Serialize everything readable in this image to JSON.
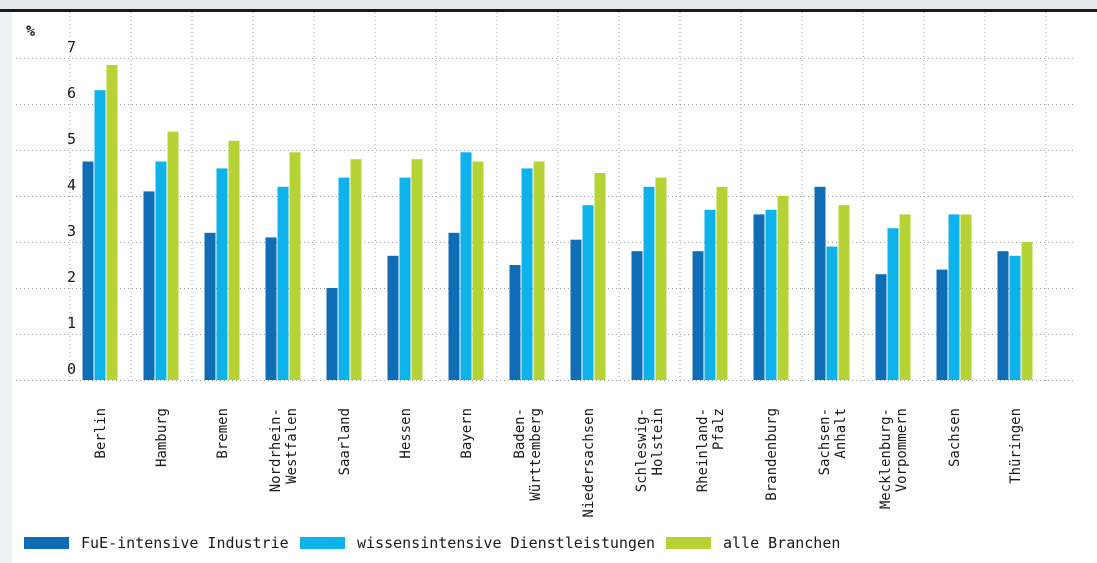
{
  "chart_data": {
    "type": "bar",
    "ylabel": "%",
    "xlabel": "",
    "ylim": [
      0,
      7
    ],
    "yticks": [
      0,
      1,
      2,
      3,
      4,
      5,
      6,
      7
    ],
    "grid": true,
    "legend_position": "bottom",
    "categories": [
      [
        "Berlin"
      ],
      [
        "Hamburg"
      ],
      [
        "Bremen"
      ],
      [
        "Nordrhein-",
        "Westfalen"
      ],
      [
        "Saarland"
      ],
      [
        "Hessen"
      ],
      [
        "Bayern"
      ],
      [
        "Baden-",
        "Württemberg"
      ],
      [
        "Niedersachsen"
      ],
      [
        "Schleswig-",
        "Holstein"
      ],
      [
        "Rheinland-",
        "Pfalz"
      ],
      [
        "Brandenburg"
      ],
      [
        "Sachsen-",
        "Anhalt"
      ],
      [
        "Mecklenburg-",
        "Vorpommern"
      ],
      [
        "Sachsen"
      ],
      [
        "Thüringen"
      ]
    ],
    "series": [
      {
        "name": "FuE-intensive Industrie",
        "color": "#0f6db5",
        "values": [
          4.75,
          4.1,
          3.2,
          3.1,
          2.0,
          2.7,
          3.2,
          2.5,
          3.05,
          2.8,
          2.8,
          3.6,
          4.2,
          2.3,
          2.4,
          2.8
        ]
      },
      {
        "name": "wissensintensive Dienstleistungen",
        "color": "#0eb2ea",
        "values": [
          6.3,
          4.75,
          4.6,
          4.2,
          4.4,
          4.4,
          4.95,
          4.6,
          3.8,
          4.2,
          3.7,
          3.7,
          2.9,
          3.3,
          3.6,
          2.7
        ]
      },
      {
        "name": "alle Branchen",
        "color": "#b5d334",
        "values": [
          6.85,
          5.4,
          5.2,
          4.95,
          4.8,
          4.8,
          4.75,
          4.75,
          4.5,
          4.4,
          4.2,
          4.0,
          3.8,
          3.6,
          3.6,
          3.0
        ]
      }
    ]
  }
}
